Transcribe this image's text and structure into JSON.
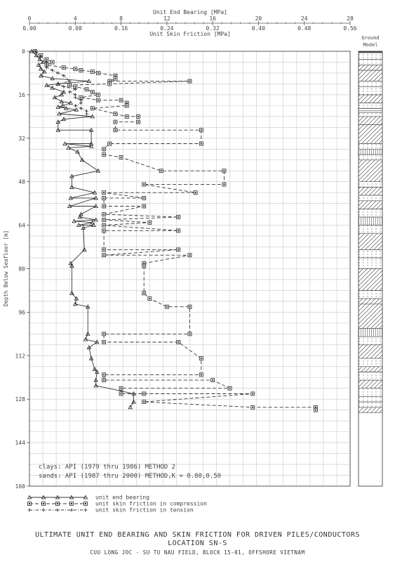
{
  "chart_data": {
    "type": "line",
    "title": "ULTIMATE UNIT END BEARING AND SKIN FRICTION FOR DRIVEN PILES/CONDUCTORS",
    "subtitle": "LOCATION SN-S",
    "subtitle2": "CUU LONG JOC - SU TU NAU FIELD, BLOCK 15-01, OFFSHORE VIETNAM",
    "ylabel": "Depth Below Seafloor [m]",
    "ylim": [
      0,
      160
    ],
    "yticks": [
      0,
      16,
      32,
      48,
      64,
      80,
      96,
      112,
      128,
      144,
      160
    ],
    "top_axis": {
      "label": "Unit End Bearing [MPa]",
      "range": [
        0,
        28
      ],
      "ticks": [
        "0",
        "4",
        "8",
        "12",
        "16",
        "20",
        "24",
        "28"
      ]
    },
    "bottom_axis": {
      "label": "Unit Skin Friction [MPa]",
      "range": [
        0,
        0.56
      ],
      "ticks": [
        "0.00",
        "0.08",
        "0.16",
        "0.24",
        "0.32",
        "0.40",
        "0.48",
        "0.56"
      ]
    },
    "grid": true,
    "ground_model_label": [
      "Ground",
      "Model"
    ],
    "notes": [
      "clays: API (1979 thru 1986) METHOD 2",
      "sands: API (1987 thru 2000) METHOD,K = 0.80,0.50"
    ],
    "legend": [
      {
        "name": "unit end bearing",
        "marker": "triangle",
        "dash": "solid"
      },
      {
        "name": "unit skin friction in compression",
        "marker": "square",
        "dash": "dashed"
      },
      {
        "name": "unit skin friction in tension",
        "marker": "plus",
        "dash": "dashdot"
      }
    ],
    "series": [
      {
        "name": "unit end bearing",
        "axis": "top",
        "points": [
          [
            0.2,
            0
          ],
          [
            0.6,
            1.5
          ],
          [
            0.9,
            3
          ],
          [
            1.2,
            4
          ],
          [
            0.8,
            5
          ],
          [
            1.0,
            6.5
          ],
          [
            1.3,
            7.5
          ],
          [
            1.0,
            9
          ],
          [
            2.0,
            10
          ],
          [
            5.2,
            11
          ],
          [
            2.5,
            12
          ],
          [
            1.5,
            12.5
          ],
          [
            2.0,
            13.5
          ],
          [
            3.0,
            15
          ],
          [
            2.8,
            16
          ],
          [
            2.2,
            17
          ],
          [
            2.8,
            18.5
          ],
          [
            3.6,
            19
          ],
          [
            2.9,
            20
          ],
          [
            2.5,
            20.5
          ],
          [
            3.2,
            21
          ],
          [
            4.1,
            21.5
          ],
          [
            2.6,
            23
          ],
          [
            5.5,
            24
          ],
          [
            3.0,
            25
          ],
          [
            2.5,
            26
          ],
          [
            2.5,
            29
          ],
          [
            5.4,
            29
          ],
          [
            5.4,
            34
          ],
          [
            3.1,
            34
          ],
          [
            5.4,
            35
          ],
          [
            3.4,
            35.5
          ],
          [
            4.2,
            37
          ],
          [
            4.6,
            40
          ],
          [
            6.0,
            44
          ],
          [
            3.7,
            46
          ],
          [
            3.7,
            50
          ],
          [
            5.7,
            52
          ],
          [
            3.6,
            54
          ],
          [
            5.8,
            54
          ],
          [
            3.5,
            57
          ],
          [
            5.8,
            57
          ],
          [
            4.5,
            60
          ],
          [
            4.4,
            61
          ],
          [
            5.8,
            62
          ],
          [
            3.9,
            62.5
          ],
          [
            5.5,
            63
          ],
          [
            4.3,
            64
          ],
          [
            5.6,
            64
          ],
          [
            4.7,
            65
          ],
          [
            4.8,
            73
          ],
          [
            3.6,
            78
          ],
          [
            3.7,
            79
          ],
          [
            3.7,
            89
          ],
          [
            4.1,
            91
          ],
          [
            4.0,
            93
          ],
          [
            5.1,
            94
          ],
          [
            5.1,
            104
          ],
          [
            4.9,
            106
          ],
          [
            5.9,
            107
          ],
          [
            5.2,
            109
          ],
          [
            5.4,
            113
          ],
          [
            5.7,
            117
          ],
          [
            5.9,
            118
          ],
          [
            5.8,
            121
          ],
          [
            5.8,
            123
          ],
          [
            9.1,
            126
          ],
          [
            9.1,
            129
          ],
          [
            8.8,
            131
          ]
        ]
      },
      {
        "name": "unit skin friction in compression",
        "axis": "bottom",
        "points": [
          [
            0.01,
            0
          ],
          [
            0.02,
            1.5
          ],
          [
            0.03,
            3
          ],
          [
            0.04,
            4
          ],
          [
            0.03,
            5
          ],
          [
            0.06,
            6
          ],
          [
            0.08,
            6.5
          ],
          [
            0.09,
            7
          ],
          [
            0.11,
            7.5
          ],
          [
            0.12,
            8
          ],
          [
            0.15,
            9
          ],
          [
            0.15,
            10
          ],
          [
            0.14,
            11
          ],
          [
            0.28,
            11
          ],
          [
            0.14,
            12
          ],
          [
            0.07,
            12.5
          ],
          [
            0.08,
            13
          ],
          [
            0.1,
            14
          ],
          [
            0.11,
            15
          ],
          [
            0.12,
            16
          ],
          [
            0.09,
            17
          ],
          [
            0.12,
            18
          ],
          [
            0.16,
            18
          ],
          [
            0.17,
            19
          ],
          [
            0.17,
            20
          ],
          [
            0.11,
            21
          ],
          [
            0.15,
            23
          ],
          [
            0.17,
            24
          ],
          [
            0.19,
            24
          ],
          [
            0.19,
            26
          ],
          [
            0.15,
            26
          ],
          [
            0.15,
            29
          ],
          [
            0.3,
            29
          ],
          [
            0.3,
            34
          ],
          [
            0.14,
            34
          ],
          [
            0.13,
            36
          ],
          [
            0.13,
            38
          ],
          [
            0.16,
            39
          ],
          [
            0.23,
            44
          ],
          [
            0.34,
            44
          ],
          [
            0.34,
            49
          ],
          [
            0.2,
            49
          ],
          [
            0.29,
            52
          ],
          [
            0.13,
            52
          ],
          [
            0.2,
            54
          ],
          [
            0.13,
            54
          ],
          [
            0.13,
            57
          ],
          [
            0.2,
            57
          ],
          [
            0.13,
            60
          ],
          [
            0.26,
            61
          ],
          [
            0.13,
            62
          ],
          [
            0.21,
            63
          ],
          [
            0.13,
            64
          ],
          [
            0.26,
            66
          ],
          [
            0.13,
            66
          ],
          [
            0.13,
            73
          ],
          [
            0.26,
            73
          ],
          [
            0.13,
            75
          ],
          [
            0.28,
            75
          ],
          [
            0.2,
            78
          ],
          [
            0.2,
            79
          ],
          [
            0.2,
            89
          ],
          [
            0.21,
            91
          ],
          [
            0.24,
            94
          ],
          [
            0.28,
            94
          ],
          [
            0.28,
            104
          ],
          [
            0.13,
            104
          ],
          [
            0.13,
            107
          ],
          [
            0.26,
            107
          ],
          [
            0.3,
            113
          ],
          [
            0.3,
            119
          ],
          [
            0.13,
            119
          ],
          [
            0.13,
            121
          ],
          [
            0.32,
            121
          ],
          [
            0.35,
            124
          ],
          [
            0.16,
            124
          ],
          [
            0.16,
            126
          ],
          [
            0.2,
            126
          ],
          [
            0.39,
            126
          ],
          [
            0.2,
            129
          ],
          [
            0.39,
            131
          ],
          [
            0.5,
            131
          ],
          [
            0.5,
            132
          ]
        ]
      },
      {
        "name": "unit skin friction in tension",
        "axis": "bottom",
        "points": [
          [
            0.01,
            0
          ],
          [
            0.02,
            2
          ],
          [
            0.03,
            4
          ],
          [
            0.03,
            6
          ],
          [
            0.04,
            7
          ],
          [
            0.05,
            8
          ],
          [
            0.06,
            9
          ],
          [
            0.07,
            11
          ],
          [
            0.05,
            12
          ],
          [
            0.06,
            13
          ],
          [
            0.08,
            14
          ],
          [
            0.07,
            15
          ],
          [
            0.08,
            16
          ],
          [
            0.08,
            17
          ],
          [
            0.09,
            18
          ],
          [
            0.09,
            19
          ],
          [
            0.08,
            20
          ],
          [
            0.09,
            21
          ],
          [
            0.1,
            22
          ],
          [
            0.1,
            23
          ]
        ]
      }
    ],
    "ground_model": [
      {
        "to": 0.5,
        "pattern": "solid"
      },
      {
        "to": 3,
        "pattern": "dots"
      },
      {
        "to": 5,
        "pattern": "dots"
      },
      {
        "to": 7,
        "pattern": "hatch"
      },
      {
        "to": 11,
        "pattern": "hatch"
      },
      {
        "to": 13,
        "pattern": "dots"
      },
      {
        "to": 16,
        "pattern": "dots"
      },
      {
        "to": 19,
        "pattern": "hatch"
      },
      {
        "to": 21,
        "pattern": "dots"
      },
      {
        "to": 22.5,
        "pattern": "lines"
      },
      {
        "to": 24,
        "pattern": "dots"
      },
      {
        "to": 27,
        "pattern": "hatch"
      },
      {
        "to": 34,
        "pattern": "hatch"
      },
      {
        "to": 36,
        "pattern": "dots"
      },
      {
        "to": 38,
        "pattern": "vlines"
      },
      {
        "to": 40,
        "pattern": "dots"
      },
      {
        "to": 48,
        "pattern": "hatch"
      },
      {
        "to": 50,
        "pattern": "dots"
      },
      {
        "to": 53,
        "pattern": "hatch"
      },
      {
        "to": 55,
        "pattern": "dots"
      },
      {
        "to": 58,
        "pattern": "hatch"
      },
      {
        "to": 61,
        "pattern": "dots"
      },
      {
        "to": 64,
        "pattern": "vlines"
      },
      {
        "to": 67,
        "pattern": "dots"
      },
      {
        "to": 73,
        "pattern": "hatch"
      },
      {
        "to": 76,
        "pattern": "dots"
      },
      {
        "to": 80,
        "pattern": "dots"
      },
      {
        "to": 88,
        "pattern": "hatch"
      },
      {
        "to": 91,
        "pattern": "dots"
      },
      {
        "to": 93,
        "pattern": "hatch"
      },
      {
        "to": 102,
        "pattern": "hatch"
      },
      {
        "to": 105,
        "pattern": "vlines"
      },
      {
        "to": 108,
        "pattern": "dots"
      },
      {
        "to": 113,
        "pattern": "hatch"
      },
      {
        "to": 116,
        "pattern": "dots"
      },
      {
        "to": 118,
        "pattern": "hatch"
      },
      {
        "to": 121,
        "pattern": "dots"
      },
      {
        "to": 124,
        "pattern": "hatch"
      },
      {
        "to": 127,
        "pattern": "dots"
      },
      {
        "to": 129,
        "pattern": "dots"
      },
      {
        "to": 131,
        "pattern": "dots"
      },
      {
        "to": 133,
        "pattern": "hatch"
      }
    ]
  }
}
